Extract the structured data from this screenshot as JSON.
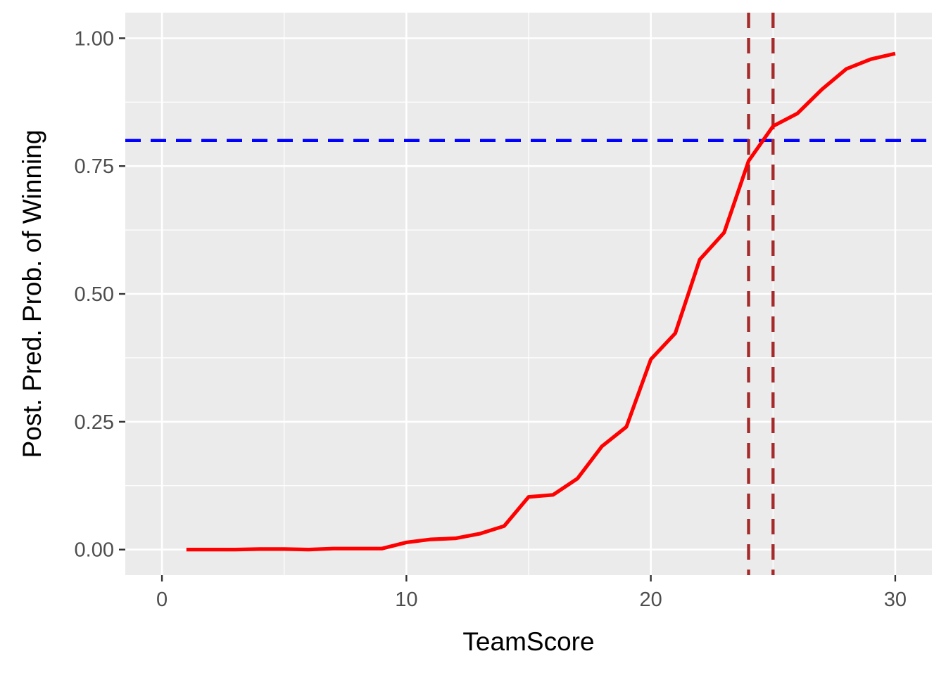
{
  "chart_data": {
    "type": "line",
    "title": "",
    "xlabel": "TeamScore",
    "ylabel": "Post. Pred. Prob. of Winning",
    "xlim": [
      -1.5,
      31.5
    ],
    "ylim": [
      -0.05,
      1.05
    ],
    "x_ticks": [
      0,
      10,
      20,
      30
    ],
    "x_tick_labels": [
      "0",
      "10",
      "20",
      "30"
    ],
    "y_ticks": [
      0,
      0.25,
      0.5,
      0.75,
      1.0
    ],
    "y_tick_labels": [
      "0.00",
      "0.25",
      "0.50",
      "0.75",
      "1.00"
    ],
    "grid": true,
    "background": "#ebebeb",
    "series": [
      {
        "color": "#ff0000",
        "x": [
          1,
          2,
          3,
          4,
          5,
          6,
          7,
          8,
          9,
          10,
          11,
          12,
          13,
          14,
          15,
          16,
          17,
          18,
          19,
          20,
          21,
          22,
          23,
          24,
          25,
          26,
          27,
          28,
          29,
          30
        ],
        "values": [
          0.0,
          0.0,
          0.0,
          0.001,
          0.001,
          0.0,
          0.002,
          0.002,
          0.002,
          0.014,
          0.02,
          0.022,
          0.031,
          0.046,
          0.103,
          0.107,
          0.139,
          0.202,
          0.24,
          0.372,
          0.423,
          0.567,
          0.62,
          0.76,
          0.828,
          0.853,
          0.9,
          0.94,
          0.959,
          0.97
        ]
      }
    ],
    "reference_lines": [
      {
        "orientation": "horizontal",
        "value": 0.8,
        "style": "dashed",
        "color": "#0000ff"
      },
      {
        "orientation": "vertical",
        "value": 24,
        "style": "dashed",
        "color": "#a52a2a"
      },
      {
        "orientation": "vertical",
        "value": 25,
        "style": "dashed",
        "color": "#a52a2a"
      }
    ]
  }
}
